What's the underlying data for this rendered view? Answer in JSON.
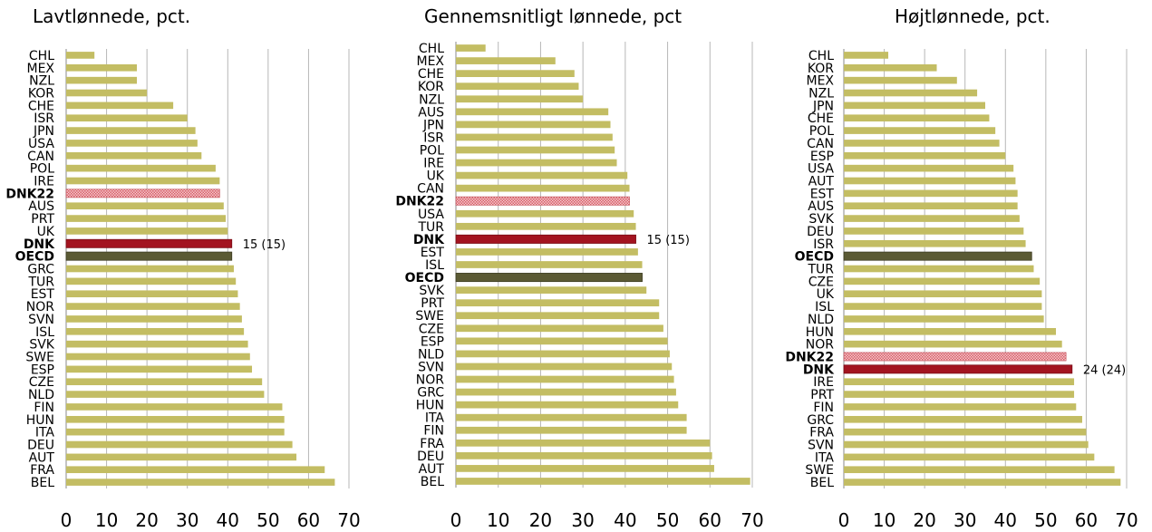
{
  "colors": {
    "default_bar": "#c3bd63",
    "dnk_bar": "#a31420",
    "oecd_bar": "#5b5a34",
    "dnk22_bar": "#e79aa0",
    "grid": "#b7b7b7",
    "axis": "#888888"
  },
  "chart_data": [
    {
      "type": "bar",
      "orientation": "horizontal",
      "title": "Lavtlønnede, pct.",
      "xlim": [
        0,
        70
      ],
      "xticks": [
        "0",
        "10",
        "20",
        "30",
        "40",
        "50",
        "60",
        "70"
      ],
      "grid": true,
      "categories": [
        "CHL",
        "MEX",
        "NZL",
        "KOR",
        "CHE",
        "ISR",
        "JPN",
        "USA",
        "CAN",
        "POL",
        "IRE",
        "DNK22",
        "AUS",
        "PRT",
        "UK",
        "DNK",
        "OECD",
        "GRC",
        "TUR",
        "EST",
        "NOR",
        "SVN",
        "ISL",
        "SVK",
        "SWE",
        "ESP",
        "CZE",
        "NLD",
        "FIN",
        "HUN",
        "ITA",
        "DEU",
        "AUT",
        "FRA",
        "BEL"
      ],
      "values": [
        7,
        17.5,
        17.5,
        20,
        26.5,
        30,
        32,
        32.5,
        33.5,
        37,
        38,
        38,
        39,
        39.5,
        40,
        41,
        41,
        41.5,
        42,
        42.5,
        43,
        43.5,
        44,
        45,
        45.5,
        46,
        48.5,
        49,
        53.5,
        54,
        54,
        56,
        57,
        64,
        66.5
      ],
      "highlight": {
        "DNK": "dnk",
        "OECD": "oecd",
        "DNK22": "dnk22"
      },
      "annotations": [
        {
          "category": "DNK",
          "text": "15 (15)"
        }
      ]
    },
    {
      "type": "bar",
      "orientation": "horizontal",
      "title": "Gennemsnitligt lønnede, pct",
      "xlim": [
        0,
        70
      ],
      "xticks": [
        "0",
        "10",
        "20",
        "30",
        "40",
        "50",
        "60",
        "70"
      ],
      "grid": true,
      "categories": [
        "CHL",
        "MEX",
        "CHE",
        "KOR",
        "NZL",
        "AUS",
        "JPN",
        "ISR",
        "POL",
        "IRE",
        "UK",
        "CAN",
        "DNK22",
        "USA",
        "TUR",
        "DNK",
        "EST",
        "ISL",
        "OECD",
        "SVK",
        "PRT",
        "SWE",
        "CZE",
        "ESP",
        "NLD",
        "SVN",
        "NOR",
        "GRC",
        "HUN",
        "ITA",
        "FIN",
        "FRA",
        "DEU",
        "AUT",
        "BEL"
      ],
      "values": [
        7,
        23.5,
        28,
        29,
        30,
        36,
        36.5,
        37,
        37.5,
        38,
        40.5,
        41,
        41,
        42,
        42.5,
        42.5,
        43,
        44,
        44,
        45,
        48,
        48,
        49,
        50,
        50.5,
        51,
        51.5,
        52,
        52.5,
        54.5,
        54.5,
        60,
        60.5,
        61,
        69.5
      ],
      "highlight": {
        "DNK": "dnk",
        "OECD": "oecd",
        "DNK22": "dnk22"
      },
      "annotations": [
        {
          "category": "DNK",
          "text": "15 (15)"
        }
      ]
    },
    {
      "type": "bar",
      "orientation": "horizontal",
      "title": "Højtlønnede, pct.",
      "xlim": [
        0,
        70
      ],
      "xticks": [
        "0",
        "10",
        "20",
        "30",
        "40",
        "50",
        "60",
        "70"
      ],
      "grid": true,
      "categories": [
        "CHL",
        "KOR",
        "MEX",
        "NZL",
        "JPN",
        "CHE",
        "POL",
        "CAN",
        "ESP",
        "USA",
        "AUT",
        "EST",
        "AUS",
        "SVK",
        "DEU",
        "ISR",
        "OECD",
        "TUR",
        "CZE",
        "UK",
        "ISL",
        "NLD",
        "HUN",
        "NOR",
        "DNK22",
        "DNK",
        "IRE",
        "PRT",
        "FIN",
        "GRC",
        "FRA",
        "SVN",
        "ITA",
        "SWE",
        "BEL"
      ],
      "values": [
        11,
        23,
        28,
        33,
        35,
        36,
        37.5,
        38.5,
        40,
        42,
        42.5,
        43,
        43,
        43.5,
        44.5,
        45,
        46.5,
        47,
        48.5,
        49,
        49,
        49.5,
        52.5,
        54,
        55,
        56.5,
        57,
        57,
        57.5,
        59,
        60,
        60.5,
        62,
        67,
        68.5
      ],
      "highlight": {
        "DNK": "dnk",
        "OECD": "oecd",
        "DNK22": "dnk22"
      },
      "annotations": [
        {
          "category": "DNK",
          "text": "24 (24)"
        }
      ]
    }
  ]
}
